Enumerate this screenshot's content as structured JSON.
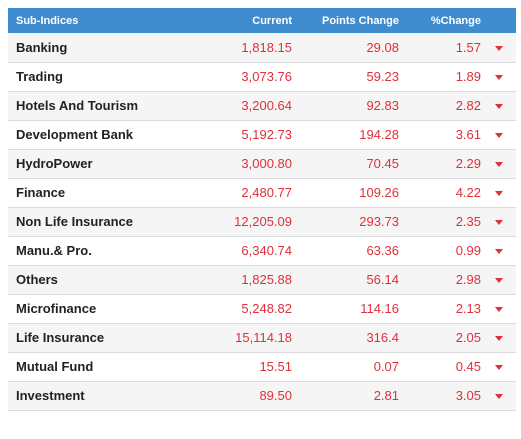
{
  "table": {
    "headers": {
      "name": "Sub-Indices",
      "current": "Current",
      "points_change": "Points Change",
      "pct_change": "%Change"
    },
    "trend_icon": "down-arrow-icon",
    "trend_color": "#e0303a",
    "header_color": "#3f8ccf",
    "rows": [
      {
        "name": "Banking",
        "current": "1,818.15",
        "points_change": "29.08",
        "pct_change": "1.57"
      },
      {
        "name": "Trading",
        "current": "3,073.76",
        "points_change": "59.23",
        "pct_change": "1.89"
      },
      {
        "name": "Hotels And Tourism",
        "current": "3,200.64",
        "points_change": "92.83",
        "pct_change": "2.82"
      },
      {
        "name": "Development Bank",
        "current": "5,192.73",
        "points_change": "194.28",
        "pct_change": "3.61"
      },
      {
        "name": "HydroPower",
        "current": "3,000.80",
        "points_change": "70.45",
        "pct_change": "2.29"
      },
      {
        "name": "Finance",
        "current": "2,480.77",
        "points_change": "109.26",
        "pct_change": "4.22"
      },
      {
        "name": "Non Life Insurance",
        "current": "12,205.09",
        "points_change": "293.73",
        "pct_change": "2.35"
      },
      {
        "name": "Manu.& Pro.",
        "current": "6,340.74",
        "points_change": "63.36",
        "pct_change": "0.99"
      },
      {
        "name": "Others",
        "current": "1,825.88",
        "points_change": "56.14",
        "pct_change": "2.98"
      },
      {
        "name": "Microfinance",
        "current": "5,248.82",
        "points_change": "114.16",
        "pct_change": "2.13"
      },
      {
        "name": "Life Insurance",
        "current": "15,114.18",
        "points_change": "316.4",
        "pct_change": "2.05"
      },
      {
        "name": "Mutual Fund",
        "current": "15.51",
        "points_change": "0.07",
        "pct_change": "0.45"
      },
      {
        "name": "Investment",
        "current": "89.50",
        "points_change": "2.81",
        "pct_change": "3.05"
      }
    ]
  }
}
